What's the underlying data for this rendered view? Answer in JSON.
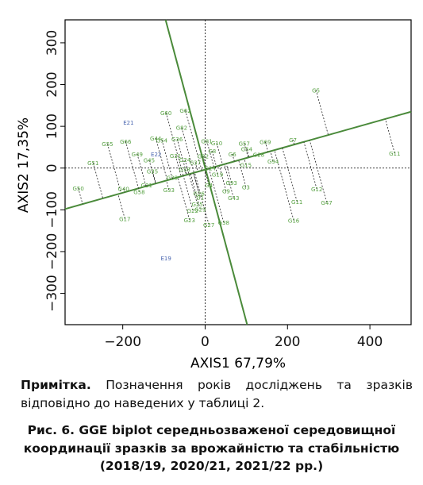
{
  "chart_data": {
    "type": "scatter",
    "xlabel": "AXIS1 67,79%",
    "ylabel": "AXIS2 17,35%",
    "xlim": [
      -340,
      500
    ],
    "ylim": [
      -375,
      355
    ],
    "x_ticks": [
      -200,
      0,
      200,
      400
    ],
    "y_ticks": [
      -300,
      -200,
      -100,
      0,
      100,
      200,
      300
    ],
    "x_tick_labels": [
      "−200",
      "0",
      "200",
      "400"
    ],
    "y_tick_labels": [
      "−300",
      "−200",
      "−100",
      "0",
      "100",
      "200",
      "300"
    ],
    "environments": [
      {
        "label": "E21",
        "x": -186,
        "y": 110
      },
      {
        "label": "E19",
        "x": -95,
        "y": -215
      },
      {
        "label": "E22",
        "x": -119,
        "y": 34
      }
    ],
    "genotypes": [
      {
        "label": "G5",
        "x": 269,
        "y": 187
      },
      {
        "label": "G11",
        "x": 460,
        "y": 36
      },
      {
        "label": "G7",
        "x": 213,
        "y": 68
      },
      {
        "label": "G12",
        "x": 271,
        "y": -50
      },
      {
        "label": "G17",
        "x": -195,
        "y": -121
      },
      {
        "label": "G51",
        "x": -272,
        "y": 13
      },
      {
        "label": "G50",
        "x": -308,
        "y": -48
      },
      {
        "label": "G55",
        "x": -237,
        "y": 58
      },
      {
        "label": "G66",
        "x": -193,
        "y": 64
      },
      {
        "label": "G58",
        "x": -160,
        "y": -57
      },
      {
        "label": "G60",
        "x": -95,
        "y": 133
      },
      {
        "label": "G62",
        "x": -48,
        "y": 138
      },
      {
        "label": "G82",
        "x": -57,
        "y": 97
      },
      {
        "label": "G44",
        "x": -120,
        "y": 72
      },
      {
        "label": "G54",
        "x": -105,
        "y": 67
      },
      {
        "label": "G49",
        "x": -165,
        "y": 34
      },
      {
        "label": "G40",
        "x": -198,
        "y": -49
      },
      {
        "label": "G45",
        "x": -136,
        "y": 19
      },
      {
        "label": "G33",
        "x": -88,
        "y": -52
      },
      {
        "label": "G23",
        "x": -38,
        "y": -124
      },
      {
        "label": "G81",
        "x": 4,
        "y": 65
      },
      {
        "label": "G69",
        "x": 146,
        "y": 63
      },
      {
        "label": "G57",
        "x": 95,
        "y": 59
      },
      {
        "label": "G54",
        "x": 101,
        "y": 46
      },
      {
        "label": "G6",
        "x": 66,
        "y": 34
      },
      {
        "label": "G15",
        "x": 99,
        "y": 8
      },
      {
        "label": "G28",
        "x": 130,
        "y": 33
      },
      {
        "label": "G94",
        "x": 165,
        "y": 17
      },
      {
        "label": "G93",
        "x": 64,
        "y": -35
      },
      {
        "label": "G3",
        "x": 99,
        "y": -45
      },
      {
        "label": "G11",
        "x": 223,
        "y": -80
      },
      {
        "label": "G16",
        "x": 215,
        "y": -125
      },
      {
        "label": "G47",
        "x": 295,
        "y": -82
      },
      {
        "label": "G43",
        "x": 69,
        "y": -71
      },
      {
        "label": "G9",
        "x": 51,
        "y": -55
      },
      {
        "label": "G27",
        "x": 9,
        "y": -135
      },
      {
        "label": "G38",
        "x": 45,
        "y": -130
      },
      {
        "label": "G26",
        "x": -15,
        "y": -60
      },
      {
        "label": "G1",
        "x": -12,
        "y": -70
      },
      {
        "label": "G25",
        "x": -19,
        "y": -86
      },
      {
        "label": "G29",
        "x": -12,
        "y": -98
      },
      {
        "label": "G22",
        "x": -30,
        "y": -101
      },
      {
        "label": "G32",
        "x": -5,
        "y": 29
      },
      {
        "label": "G31",
        "x": -72,
        "y": 30
      },
      {
        "label": "G36",
        "x": -68,
        "y": 70
      },
      {
        "label": "G10",
        "x": 28,
        "y": 60
      },
      {
        "label": "G37",
        "x": -24,
        "y": 14
      },
      {
        "label": "G8",
        "x": 17,
        "y": 41
      },
      {
        "label": "G14",
        "x": 12,
        "y": 0
      },
      {
        "label": "G24",
        "x": -49,
        "y": 20
      },
      {
        "label": "G4",
        "x": 9,
        "y": -40
      },
      {
        "label": "G30",
        "x": -80,
        "y": -22
      },
      {
        "label": "G21",
        "x": -142,
        "y": -40
      },
      {
        "label": "G35",
        "x": -128,
        "y": -7
      },
      {
        "label": "G18",
        "x": -50,
        "y": -2
      },
      {
        "label": "G19",
        "x": 30,
        "y": -15
      }
    ],
    "axis_lines": [
      {
        "name": "aec-abscissa",
        "x1": -340,
        "y1": -98,
        "x2": 500,
        "y2": 135,
        "color": "#4a8a3a"
      },
      {
        "name": "aec-ordinate",
        "x1": -96,
        "y1": 355,
        "x2": 102,
        "y2": -375,
        "color": "#4a8a3a"
      }
    ],
    "colors": {
      "genotype": "#55a040",
      "environment": "#4a66b0",
      "axis_line": "#4a8a3a",
      "projection": "#222222"
    }
  },
  "note": {
    "label": "Примітка.",
    "text": "Позначення років досліджень та зразків відповідно до наведених у таблиці 2."
  },
  "caption": {
    "line1": "Рис. 6. GGE biplot середньозваженої середовищної",
    "line2": "координації зразків за врожайністю та стабільністю",
    "line3": "(2018/19, 2020/21, 2021/22 рр.)"
  }
}
